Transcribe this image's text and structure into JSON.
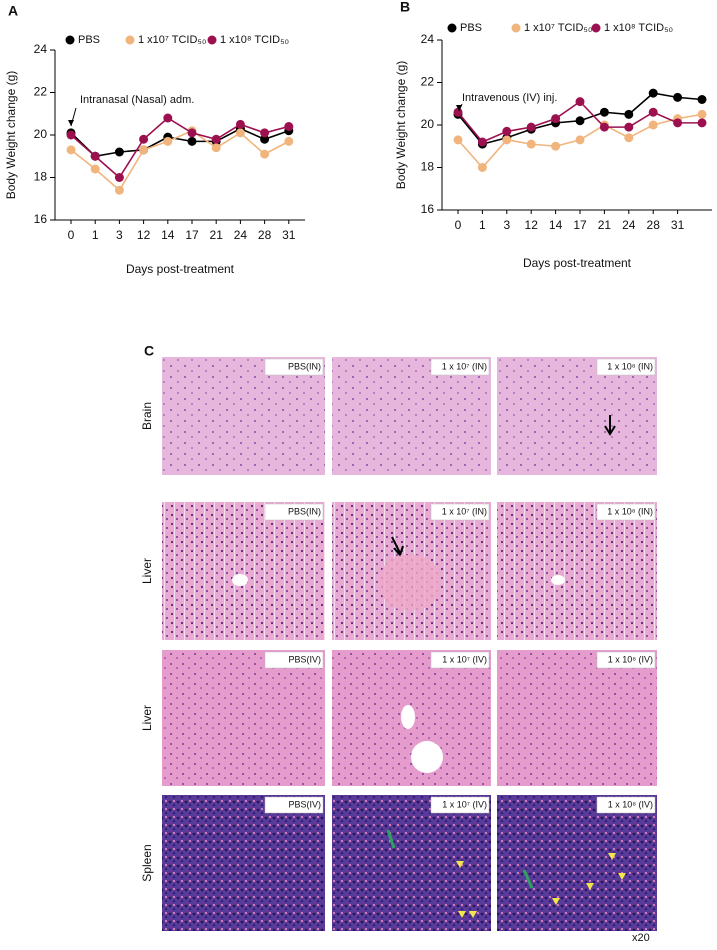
{
  "chart_data": [
    {
      "type": "line",
      "panel": "A",
      "annotation": "Intranasal (Nasal) adm.",
      "ylabel": "Body Weight change (g)",
      "xlabel": "Days post-treatment",
      "categories": [
        "0",
        "1",
        "3",
        "12",
        "14",
        "17",
        "21",
        "24",
        "28",
        "31"
      ],
      "ylim": [
        16,
        24
      ],
      "yticks": [
        16,
        18,
        20,
        22,
        24
      ],
      "series": [
        {
          "name": "PBS",
          "color": "#000000",
          "values": [
            20.1,
            19.0,
            19.2,
            19.3,
            19.9,
            19.7,
            19.7,
            20.3,
            19.8,
            20.2
          ]
        },
        {
          "name": "1 x10⁷ TCID₅₀",
          "color": "#f0b47c",
          "values": [
            19.3,
            18.4,
            17.4,
            19.3,
            19.7,
            20.2,
            19.4,
            20.1,
            19.1,
            19.7
          ]
        },
        {
          "name": "1 x10⁸ TCID₅₀",
          "color": "#9c1050",
          "values": [
            20.0,
            19.0,
            18.0,
            19.8,
            20.8,
            20.1,
            19.8,
            20.5,
            20.1,
            20.4
          ]
        }
      ]
    },
    {
      "type": "line",
      "panel": "B",
      "annotation": "Intravenous (IV) inj.",
      "ylabel": "Body Weight change (g)",
      "xlabel": "Days post-treatment",
      "categories": [
        "0",
        "1",
        "3",
        "12",
        "14",
        "17",
        "21",
        "24",
        "28",
        "31",
        null
      ],
      "ylim": [
        16,
        24
      ],
      "yticks": [
        16,
        18,
        20,
        22,
        24
      ],
      "series": [
        {
          "name": "PBS",
          "color": "#000000",
          "values": [
            20.5,
            19.1,
            19.4,
            19.8,
            20.1,
            20.2,
            20.6,
            20.5,
            21.5,
            21.3,
            21.2
          ]
        },
        {
          "name": "1 x10⁷ TCID₅₀",
          "color": "#f0b47c",
          "values": [
            19.3,
            18.0,
            19.3,
            19.1,
            19.0,
            19.3,
            20.0,
            19.4,
            20.0,
            20.3,
            20.5
          ]
        },
        {
          "name": "1 x10⁸ TCID₅₀",
          "color": "#9c1050",
          "values": [
            20.6,
            19.2,
            19.7,
            19.9,
            20.3,
            21.1,
            19.9,
            19.9,
            20.6,
            20.1,
            20.1
          ]
        }
      ]
    }
  ],
  "panel_c": {
    "panel": "C",
    "magnification": "x20",
    "rows": [
      {
        "label": "Brain",
        "cells": [
          "PBS(IN)",
          "1 x 10⁷ (IN)",
          "1 x 10⁸ (IN)"
        ]
      },
      {
        "label": "Liver",
        "cells": [
          "PBS(IN)",
          "1 x 10⁷ (IN)",
          "1 x 10⁸ (IN)"
        ]
      },
      {
        "label": "Liver",
        "cells": [
          "PBS(IV)",
          "1 x 10⁷ (IV)",
          "1 x 10⁸ (IV)"
        ]
      },
      {
        "label": "Spleen",
        "cells": [
          "PBS(IV)",
          "1 x 10⁷ (IV)",
          "1 x 10⁸ (IV)"
        ]
      }
    ]
  }
}
